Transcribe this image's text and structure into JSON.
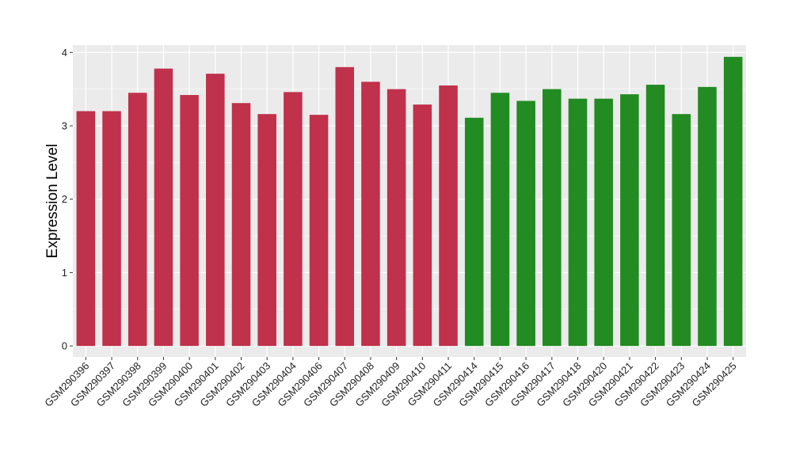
{
  "chart_data": {
    "type": "bar",
    "title": "",
    "xlabel": "",
    "ylabel": "Expression Level",
    "ylim": [
      -0.15,
      4.1
    ],
    "yticks": [
      0,
      1,
      2,
      3,
      4
    ],
    "grid": true,
    "categories": [
      "GSM290396",
      "GSM290397",
      "GSM290398",
      "GSM290399",
      "GSM290400",
      "GSM290401",
      "GSM290402",
      "GSM290403",
      "GSM290404",
      "GSM290406",
      "GSM290407",
      "GSM290408",
      "GSM290409",
      "GSM290410",
      "GSM290411",
      "GSM290414",
      "GSM290415",
      "GSM290416",
      "GSM290417",
      "GSM290418",
      "GSM290420",
      "GSM290421",
      "GSM290422",
      "GSM290423",
      "GSM290424",
      "GSM290425"
    ],
    "values": [
      3.2,
      3.2,
      3.45,
      3.78,
      3.42,
      3.71,
      3.31,
      3.16,
      3.46,
      3.15,
      3.8,
      3.6,
      3.5,
      3.29,
      3.55,
      3.11,
      3.45,
      3.34,
      3.5,
      3.37,
      3.37,
      3.43,
      3.56,
      3.16,
      3.53,
      3.94
    ],
    "groups": [
      "red",
      "red",
      "red",
      "red",
      "red",
      "red",
      "red",
      "red",
      "red",
      "red",
      "red",
      "red",
      "red",
      "red",
      "red",
      "green",
      "green",
      "green",
      "green",
      "green",
      "green",
      "green",
      "green",
      "green",
      "green",
      "green"
    ],
    "colors": {
      "red": "#c0314b",
      "green": "#228b22",
      "panel": "#ebebeb",
      "grid": "#ffffff",
      "axis_text": "#222222"
    }
  }
}
